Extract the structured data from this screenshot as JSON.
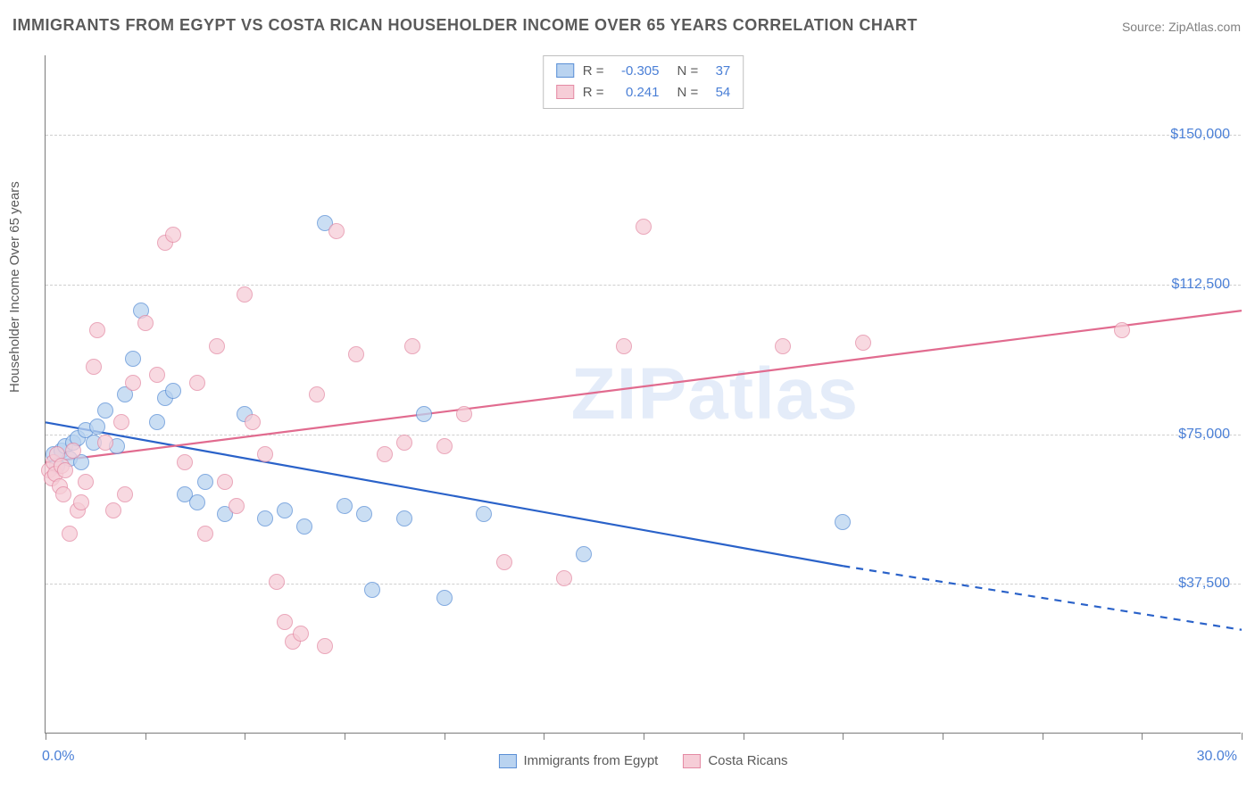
{
  "title": "IMMIGRANTS FROM EGYPT VS COSTA RICAN HOUSEHOLDER INCOME OVER 65 YEARS CORRELATION CHART",
  "source": "Source: ZipAtlas.com",
  "watermark": "ZIPatlas",
  "chart": {
    "type": "scatter",
    "ylabel": "Householder Income Over 65 years",
    "background_color": "#ffffff",
    "grid_color": "#cfcfcf",
    "axis_color": "#7a7a7a",
    "label_fontsize": 15,
    "tick_fontsize": 16,
    "tick_color": "#4a7fd6",
    "marker_size": 18,
    "marker_opacity": 0.75,
    "xlim": [
      0,
      30
    ],
    "ylim": [
      0,
      170000
    ],
    "x_ticks": [
      0,
      2.5,
      5,
      7.5,
      10,
      12.5,
      15,
      17.5,
      20,
      22.5,
      25,
      27.5,
      30
    ],
    "x_tick_labels_shown": {
      "0": "0.0%",
      "30": "30.0%"
    },
    "y_gridlines": [
      37500,
      75000,
      112500,
      150000
    ],
    "y_tick_labels": [
      "$37,500",
      "$75,000",
      "$112,500",
      "$150,000"
    ],
    "series": [
      {
        "name": "Immigrants from Egypt",
        "fill_color": "#b9d3f0",
        "stroke_color": "#5a8fd6",
        "line_color": "#2a62c9",
        "line_width": 2.2,
        "R": "-0.305",
        "N": "37",
        "trend": {
          "x1": 0,
          "y1": 78000,
          "x2": 20,
          "y2": 42000,
          "dash_from_x": 20,
          "dash_to_x": 30,
          "dash_to_y": 26000
        },
        "points": [
          [
            0.2,
            70000
          ],
          [
            0.3,
            67000
          ],
          [
            0.4,
            71000
          ],
          [
            0.5,
            72000
          ],
          [
            0.6,
            69000
          ],
          [
            0.7,
            73000
          ],
          [
            0.8,
            74000
          ],
          [
            0.9,
            68000
          ],
          [
            1.0,
            76000
          ],
          [
            1.2,
            73000
          ],
          [
            1.3,
            77000
          ],
          [
            1.5,
            81000
          ],
          [
            1.8,
            72000
          ],
          [
            2.0,
            85000
          ],
          [
            2.2,
            94000
          ],
          [
            2.4,
            106000
          ],
          [
            2.8,
            78000
          ],
          [
            3.0,
            84000
          ],
          [
            3.2,
            86000
          ],
          [
            3.5,
            60000
          ],
          [
            3.8,
            58000
          ],
          [
            4.0,
            63000
          ],
          [
            4.5,
            55000
          ],
          [
            5.0,
            80000
          ],
          [
            5.5,
            54000
          ],
          [
            6.0,
            56000
          ],
          [
            6.5,
            52000
          ],
          [
            7.0,
            128000
          ],
          [
            7.5,
            57000
          ],
          [
            8.0,
            55000
          ],
          [
            8.2,
            36000
          ],
          [
            9.0,
            54000
          ],
          [
            9.5,
            80000
          ],
          [
            10.0,
            34000
          ],
          [
            11.0,
            55000
          ],
          [
            13.5,
            45000
          ],
          [
            20.0,
            53000
          ]
        ]
      },
      {
        "name": "Costa Ricans",
        "fill_color": "#f6cdd7",
        "stroke_color": "#e48aa4",
        "line_color": "#e16b8f",
        "line_width": 2.2,
        "R": "0.241",
        "N": "54",
        "trend": {
          "x1": 0,
          "y1": 68000,
          "x2": 30,
          "y2": 106000
        },
        "points": [
          [
            0.1,
            66000
          ],
          [
            0.15,
            64000
          ],
          [
            0.2,
            68000
          ],
          [
            0.25,
            65000
          ],
          [
            0.3,
            70000
          ],
          [
            0.35,
            62000
          ],
          [
            0.4,
            67000
          ],
          [
            0.45,
            60000
          ],
          [
            0.5,
            66000
          ],
          [
            0.6,
            50000
          ],
          [
            0.7,
            71000
          ],
          [
            0.8,
            56000
          ],
          [
            0.9,
            58000
          ],
          [
            1.0,
            63000
          ],
          [
            1.2,
            92000
          ],
          [
            1.3,
            101000
          ],
          [
            1.5,
            73000
          ],
          [
            1.7,
            56000
          ],
          [
            1.9,
            78000
          ],
          [
            2.0,
            60000
          ],
          [
            2.2,
            88000
          ],
          [
            2.5,
            103000
          ],
          [
            2.8,
            90000
          ],
          [
            3.0,
            123000
          ],
          [
            3.2,
            125000
          ],
          [
            3.5,
            68000
          ],
          [
            3.8,
            88000
          ],
          [
            4.0,
            50000
          ],
          [
            4.3,
            97000
          ],
          [
            4.5,
            63000
          ],
          [
            4.8,
            57000
          ],
          [
            5.0,
            110000
          ],
          [
            5.5,
            70000
          ],
          [
            5.8,
            38000
          ],
          [
            6.0,
            28000
          ],
          [
            6.2,
            23000
          ],
          [
            6.4,
            25000
          ],
          [
            6.8,
            85000
          ],
          [
            7.0,
            22000
          ],
          [
            7.3,
            126000
          ],
          [
            7.8,
            95000
          ],
          [
            8.5,
            70000
          ],
          [
            9.0,
            73000
          ],
          [
            9.2,
            97000
          ],
          [
            10.0,
            72000
          ],
          [
            10.5,
            80000
          ],
          [
            11.5,
            43000
          ],
          [
            13.0,
            39000
          ],
          [
            14.5,
            97000
          ],
          [
            15.0,
            127000
          ],
          [
            18.5,
            97000
          ],
          [
            20.5,
            98000
          ],
          [
            27.0,
            101000
          ],
          [
            5.2,
            78000
          ]
        ]
      }
    ],
    "legend": {
      "position": "bottom-center",
      "items": [
        "Immigrants from Egypt",
        "Costa Ricans"
      ]
    },
    "stats_box": {
      "position": "top-center"
    }
  }
}
